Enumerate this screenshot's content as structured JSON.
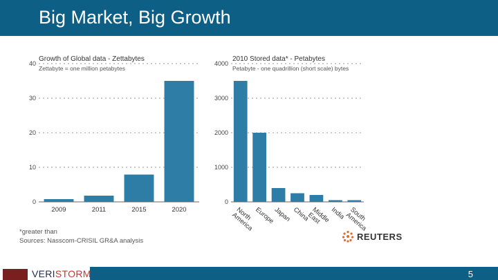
{
  "slide": {
    "title": "Big Market, Big Growth",
    "page_number": "5"
  },
  "footer": {
    "logo_prefix": "VERI",
    "logo_suffix": "STORM",
    "note1": "*greater than",
    "note2": "Sources: Nasscom-CRISIL GR&A analysis",
    "source_logo": "REUTERS"
  },
  "colors": {
    "bar": "#2e7da6",
    "header_bar": "#0e5f86",
    "logo_orange": "#e06b2a"
  },
  "chart_data": [
    {
      "type": "bar",
      "title": "Growth of Global data - Zettabytes",
      "subtitle": "Zettabyte = one million petabytes",
      "categories": [
        "2009",
        "2011",
        "2015",
        "2020"
      ],
      "values": [
        0.8,
        1.8,
        7.9,
        35
      ],
      "yticks": [
        "0",
        "10",
        "20",
        "30",
        "40"
      ],
      "ylim": [
        0,
        40
      ],
      "grid": true
    },
    {
      "type": "bar",
      "title": "2010 Stored data* - Petabytes",
      "subtitle": "Petabyte - one quadrillion (short scale) bytes",
      "categories": [
        "North America",
        "Europe",
        "Japan",
        "China",
        "Middle East",
        "India",
        "South America"
      ],
      "values": [
        3500,
        2000,
        400,
        250,
        200,
        50,
        50
      ],
      "yticks": [
        "0",
        "1000",
        "2000",
        "3000",
        "4000"
      ],
      "ylim": [
        0,
        4000
      ],
      "grid": true
    }
  ]
}
